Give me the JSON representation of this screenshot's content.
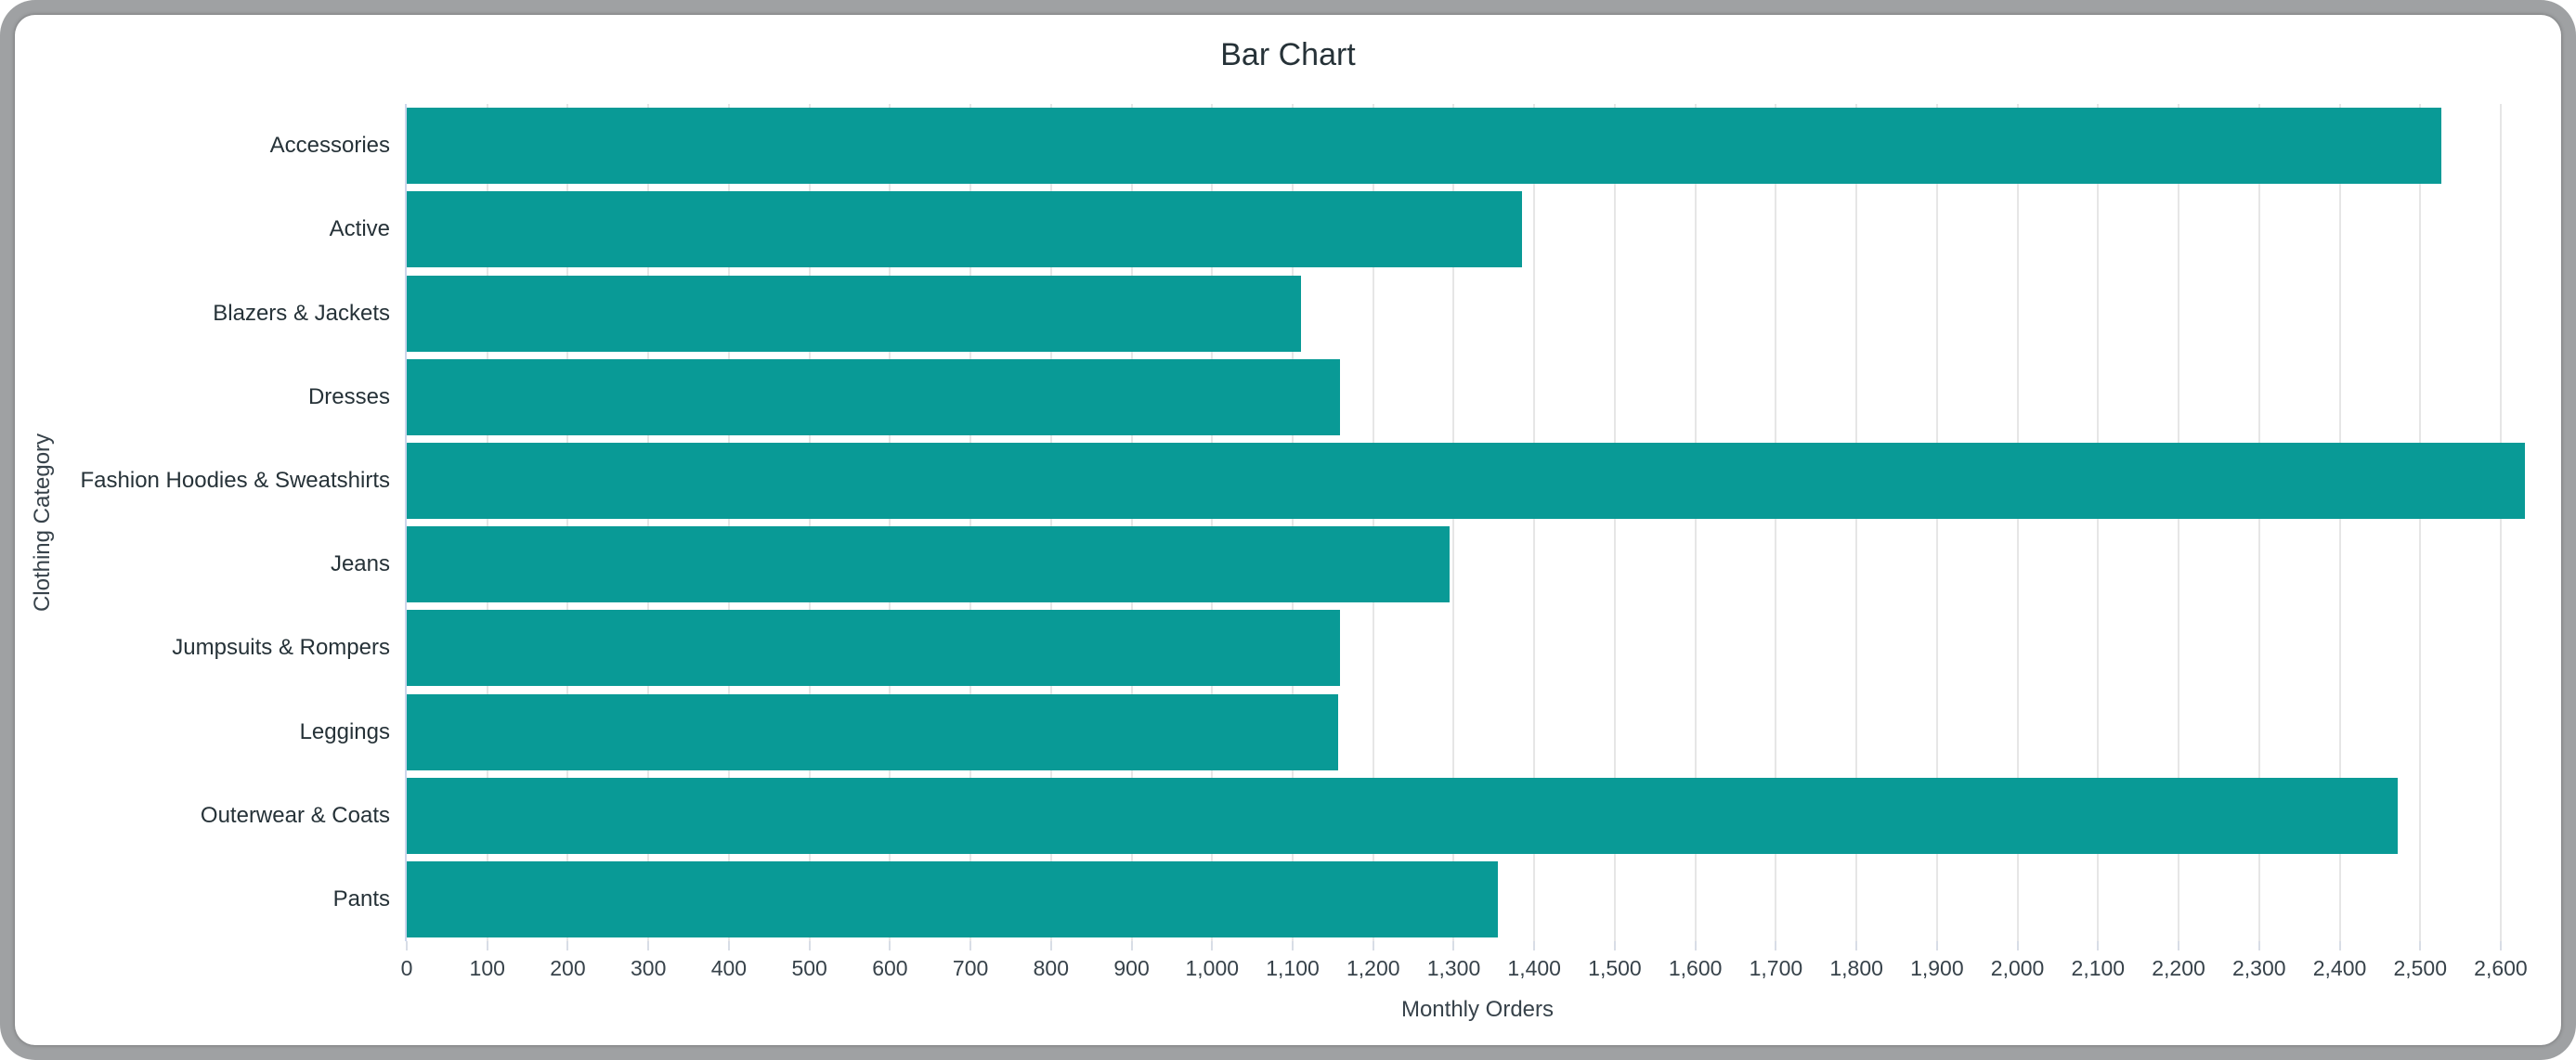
{
  "chart_data": {
    "type": "bar",
    "orientation": "horizontal",
    "title": "Bar Chart",
    "xlabel": "Monthly Orders",
    "ylabel": "Clothing Category",
    "categories": [
      "Accessories",
      "Active",
      "Blazers & Jackets",
      "Dresses",
      "Fashion Hoodies & Sweatshirts",
      "Jeans",
      "Jumpsuits & Rompers",
      "Leggings",
      "Outerwear & Coats",
      "Pants"
    ],
    "values": [
      2526,
      1385,
      1110,
      1159,
      2630,
      1295,
      1159,
      1156,
      2472,
      1355
    ],
    "xlim": [
      0,
      2660
    ],
    "xticks": [
      0,
      100,
      200,
      300,
      400,
      500,
      600,
      700,
      800,
      900,
      1000,
      1100,
      1200,
      1300,
      1400,
      1500,
      1600,
      1700,
      1800,
      1900,
      2000,
      2100,
      2200,
      2300,
      2400,
      2500,
      2600
    ],
    "xtick_labels": [
      "0",
      "100",
      "200",
      "300",
      "400",
      "500",
      "600",
      "700",
      "800",
      "900",
      "1,000",
      "1,100",
      "1,200",
      "1,300",
      "1,400",
      "1,500",
      "1,600",
      "1,700",
      "1,800",
      "1,900",
      "2,000",
      "2,100",
      "2,200",
      "2,300",
      "2,400",
      "2,500",
      "2,600"
    ],
    "grid": "vertical",
    "legend": "none",
    "bar_color": "#099a96"
  },
  "colors": {
    "bar": "#099a96",
    "gridline": "#e6e6e6",
    "axis_line": "#ccd6eb",
    "frame": "#9fa1a3",
    "background": "#ffffff",
    "text_dark": "#263238",
    "text_axis": "#37424a"
  }
}
